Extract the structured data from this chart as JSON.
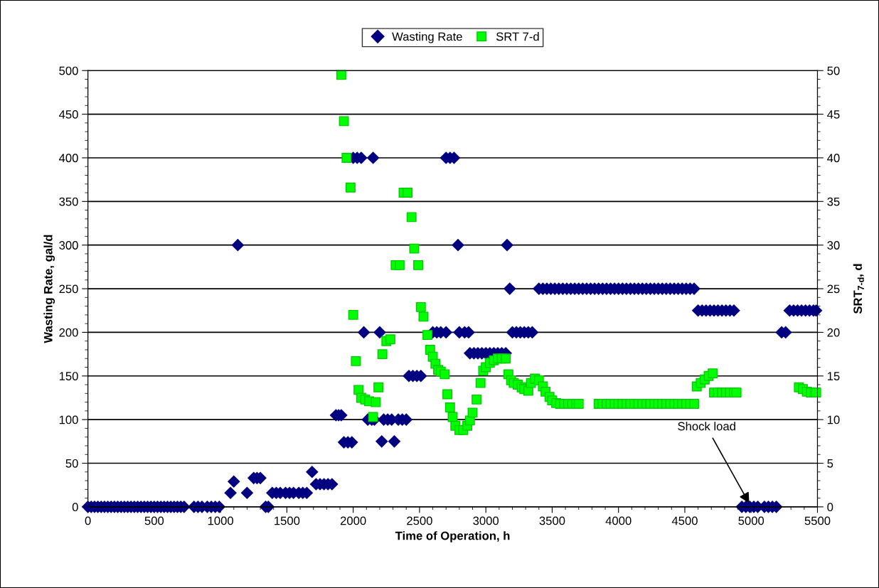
{
  "chart_data": {
    "type": "scatter",
    "xlabel": "Time of Operation, h",
    "ylabel": "Wasting Rate, gal/d",
    "y2label": "SRT$_{7-d}$, d",
    "xlim": [
      0,
      5500
    ],
    "xticks": [
      0,
      500,
      1000,
      1500,
      2000,
      2500,
      3000,
      3500,
      4000,
      4500,
      5000,
      5500
    ],
    "ylim": [
      0,
      500
    ],
    "yticks": [
      0,
      50,
      100,
      150,
      200,
      250,
      300,
      350,
      400,
      450,
      500
    ],
    "y2lim": [
      0,
      50
    ],
    "y2ticks": [
      0,
      5,
      10,
      15,
      20,
      25,
      30,
      35,
      40,
      45,
      50
    ],
    "grid": "y",
    "legend": "top",
    "annotations": [
      {
        "text": "Shock load",
        "x": 5000,
        "y": 0
      }
    ],
    "series": [
      {
        "name": "Wasting Rate",
        "color": "#000080",
        "marker": "diamond",
        "x": [
          0,
          25,
          50,
          75,
          100,
          125,
          150,
          175,
          200,
          225,
          250,
          275,
          300,
          325,
          350,
          375,
          400,
          425,
          450,
          475,
          500,
          525,
          550,
          575,
          600,
          625,
          650,
          675,
          700,
          725,
          800,
          830,
          860,
          900,
          930,
          960,
          990,
          1075,
          1100,
          1130,
          1200,
          1250,
          1275,
          1300,
          1340,
          1360,
          1390,
          1420,
          1450,
          1490,
          1520,
          1550,
          1590,
          1620,
          1650,
          1690,
          1720,
          1750,
          1780,
          1810,
          1840,
          1870,
          1890,
          1910,
          1930,
          1960,
          1990,
          2000,
          2030,
          2060,
          2080,
          2110,
          2140,
          2160,
          2150,
          2200,
          2215,
          2230,
          2260,
          2290,
          2310,
          2340,
          2370,
          2400,
          2420,
          2450,
          2480,
          2510,
          2540,
          2570,
          2600,
          2630,
          2660,
          2700,
          2700,
          2730,
          2760,
          2790,
          2800,
          2840,
          2870,
          2880,
          2910,
          2940,
          2970,
          3000,
          3030,
          3060,
          3090,
          3120,
          3150,
          3160,
          3180,
          3200,
          3230,
          3260,
          3290,
          3320,
          3350,
          3400,
          3430,
          3460,
          3490,
          3520,
          3550,
          3580,
          3610,
          3640,
          3670,
          3700,
          3730,
          3760,
          3790,
          3820,
          3850,
          3880,
          3910,
          3940,
          3970,
          4000,
          4030,
          4060,
          4090,
          4120,
          4150,
          4180,
          4210,
          4240,
          4270,
          4300,
          4330,
          4360,
          4390,
          4420,
          4450,
          4480,
          4510,
          4540,
          4570,
          4600,
          4630,
          4660,
          4690,
          4720,
          4750,
          4780,
          4810,
          4840,
          4870,
          4930,
          4960,
          4990,
          5020,
          5050,
          5100,
          5130,
          5160,
          5190,
          5230,
          5260,
          5290,
          5320,
          5350,
          5380,
          5410,
          5440,
          5470,
          5490
        ],
        "values": [
          0,
          0,
          0,
          0,
          0,
          0,
          0,
          0,
          0,
          0,
          0,
          0,
          0,
          0,
          0,
          0,
          0,
          0,
          0,
          0,
          0,
          0,
          0,
          0,
          0,
          0,
          0,
          0,
          0,
          0,
          0,
          0,
          0,
          0,
          0,
          0,
          0,
          16,
          29,
          300,
          16,
          33,
          33,
          33,
          0,
          0,
          16,
          16,
          16,
          16,
          16,
          16,
          16,
          16,
          16,
          40,
          26,
          26,
          26,
          26,
          26,
          105,
          105,
          105,
          74,
          74,
          74,
          400,
          400,
          400,
          200,
          100,
          100,
          100,
          400,
          200,
          75,
          100,
          100,
          100,
          75,
          100,
          100,
          100,
          150,
          150,
          150,
          150,
          null,
          null,
          200,
          200,
          200,
          200,
          400,
          400,
          400,
          300,
          200,
          200,
          200,
          176,
          176,
          176,
          176,
          176,
          176,
          176,
          176,
          176,
          176,
          300,
          250,
          200,
          200,
          200,
          200,
          200,
          200,
          250,
          250,
          250,
          250,
          250,
          250,
          250,
          250,
          250,
          250,
          250,
          250,
          250,
          250,
          250,
          250,
          250,
          250,
          250,
          250,
          250,
          250,
          250,
          250,
          250,
          250,
          250,
          250,
          250,
          250,
          250,
          250,
          250,
          250,
          250,
          250,
          250,
          250,
          250,
          250,
          225,
          225,
          225,
          225,
          225,
          225,
          225,
          225,
          225,
          225,
          0,
          0,
          0,
          0,
          0,
          0,
          0,
          0,
          0,
          200,
          200,
          225,
          225,
          225,
          225,
          225,
          225,
          225,
          225
        ]
      },
      {
        "name": "SRT 7-d",
        "color": "#00ff00",
        "marker": "square",
        "axis": "y2",
        "x": [
          1910,
          1930,
          1950,
          1980,
          2000,
          2020,
          2040,
          2060,
          2090,
          2120,
          2150,
          2170,
          2190,
          2220,
          2250,
          2280,
          2320,
          2350,
          2380,
          2410,
          2440,
          2460,
          2490,
          2510,
          2530,
          2560,
          2580,
          2600,
          2620,
          2640,
          2660,
          2690,
          2710,
          2730,
          2750,
          2770,
          2800,
          2830,
          2860,
          2880,
          2900,
          2930,
          2960,
          2980,
          3000,
          3030,
          3060,
          3090,
          3120,
          3150,
          3170,
          3190,
          3210,
          3240,
          3270,
          3290,
          3320,
          3340,
          3370,
          3400,
          3430,
          3450,
          3480,
          3500,
          3530,
          3560,
          3590,
          3620,
          3650,
          3680,
          3700,
          3850,
          3880,
          3910,
          3940,
          3970,
          4000,
          4030,
          4060,
          4090,
          4120,
          4150,
          4180,
          4210,
          4240,
          4270,
          4300,
          4330,
          4360,
          4390,
          4420,
          4450,
          4480,
          4510,
          4540,
          4570,
          4590,
          4620,
          4650,
          4680,
          4710,
          4720,
          4750,
          4780,
          4810,
          4840,
          4870,
          4890,
          5360,
          5390,
          5420,
          5450,
          5480,
          5490
        ],
        "values": [
          49.5,
          44.2,
          40,
          36.6,
          22,
          16.7,
          13.4,
          12.5,
          12.3,
          12.1,
          10.3,
          12,
          13.7,
          17.5,
          19,
          19.2,
          27.7,
          27.7,
          36,
          36,
          33.2,
          29.6,
          27.7,
          22.9,
          21.8,
          19.7,
          18,
          17.2,
          16.4,
          15.7,
          15.5,
          15.2,
          12.9,
          11.4,
          10.3,
          9.3,
          8.8,
          8.8,
          9.3,
          9.9,
          10.8,
          12.3,
          14.2,
          15.6,
          16,
          16.5,
          16.8,
          17,
          17,
          17,
          15.2,
          14.5,
          14.2,
          14,
          13.7,
          13.5,
          13.3,
          14.2,
          14.7,
          14.5,
          13.8,
          13.2,
          12.6,
          12.2,
          11.9,
          11.8,
          11.8,
          11.8,
          11.8,
          11.8,
          11.8,
          11.8,
          11.8,
          11.8,
          11.8,
          11.8,
          11.8,
          11.8,
          11.8,
          11.8,
          11.8,
          11.8,
          11.8,
          11.8,
          11.8,
          11.8,
          11.8,
          11.8,
          11.8,
          11.8,
          11.8,
          11.8,
          11.8,
          11.8,
          11.8,
          11.8,
          13.8,
          14.2,
          14.6,
          15,
          15.3,
          13.1,
          13.1,
          13.1,
          13.1,
          13.1,
          13.1,
          13.1,
          13.7,
          13.5,
          13.2,
          13.1,
          13.1,
          13.1
        ]
      }
    ]
  }
}
